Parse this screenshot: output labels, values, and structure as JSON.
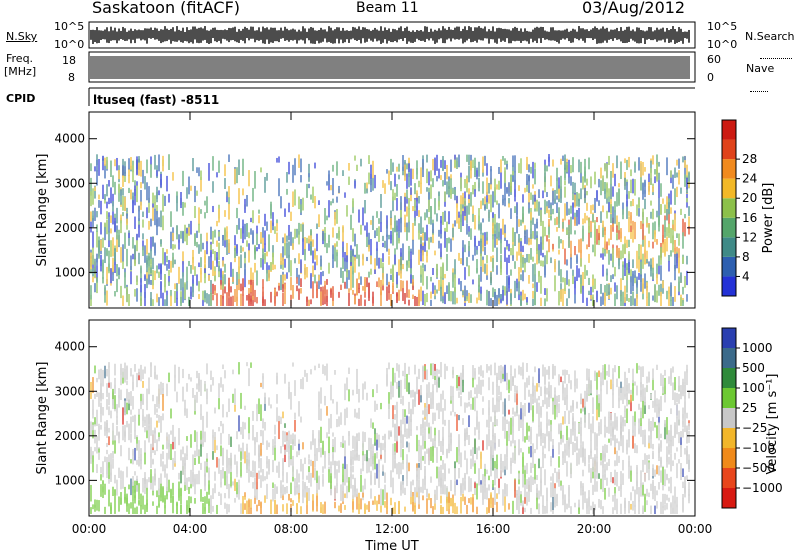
{
  "header": {
    "station": "Saskatoon (fitACF)",
    "beam": "Beam 11",
    "date": "03/Aug/2012"
  },
  "status_panels": {
    "nsky_label": "N.Sky",
    "nsky_ticks": [
      "10^5",
      "10^0"
    ],
    "nsearch_label": "N.Search",
    "freq_label_line1": "Freq.",
    "freq_label_line2": "[MHz]",
    "freq_ticks": [
      "18",
      "8"
    ],
    "nave_label": "Nave",
    "nave_ticks": [
      "60",
      "0"
    ],
    "cpid_label": "CPID",
    "cpid_value": "ltuseq (fast) -8511"
  },
  "chart_data": [
    {
      "type": "heatmap",
      "name": "power",
      "ylabel": "Slant Range [km]",
      "y_ticks": [
        1000,
        2000,
        3000,
        4000
      ],
      "ylim": [
        200,
        4600
      ],
      "x_ticks": [
        "00:00",
        "04:00",
        "08:00",
        "12:00",
        "16:00",
        "20:00",
        "00:00"
      ],
      "xlim_hours": [
        0,
        24
      ],
      "colorbar": {
        "label": "Power [dB]",
        "ticks": [
          4,
          8,
          12,
          16,
          20,
          24,
          28
        ],
        "range": [
          0,
          32
        ],
        "colors": [
          "#2432d6",
          "#2d5fb0",
          "#3f8a87",
          "#54a56a",
          "#8cc04a",
          "#f2b827",
          "#f18a1e",
          "#e0431b",
          "#cc1a12"
        ]
      }
    },
    {
      "type": "heatmap",
      "name": "velocity",
      "ylabel": "Slant Range [km]",
      "y_ticks": [
        1000,
        2000,
        3000,
        4000
      ],
      "ylim": [
        200,
        4600
      ],
      "x_ticks": [
        "00:00",
        "04:00",
        "08:00",
        "12:00",
        "16:00",
        "20:00",
        "00:00"
      ],
      "xlim_hours": [
        0,
        24
      ],
      "xlabel": "Time UT",
      "colorbar": {
        "label": "Velocity [m s⁻¹]",
        "ticks": [
          "1000",
          "500",
          "100",
          "25",
          "−25",
          "−100",
          "−500",
          "−1000"
        ],
        "colors": [
          "#2a3fb0",
          "#3b6a8a",
          "#2f8a3a",
          "#6cc832",
          "#c8c8c8",
          "#f2b62a",
          "#f08a1a",
          "#e8461c",
          "#d81a12"
        ]
      }
    }
  ]
}
